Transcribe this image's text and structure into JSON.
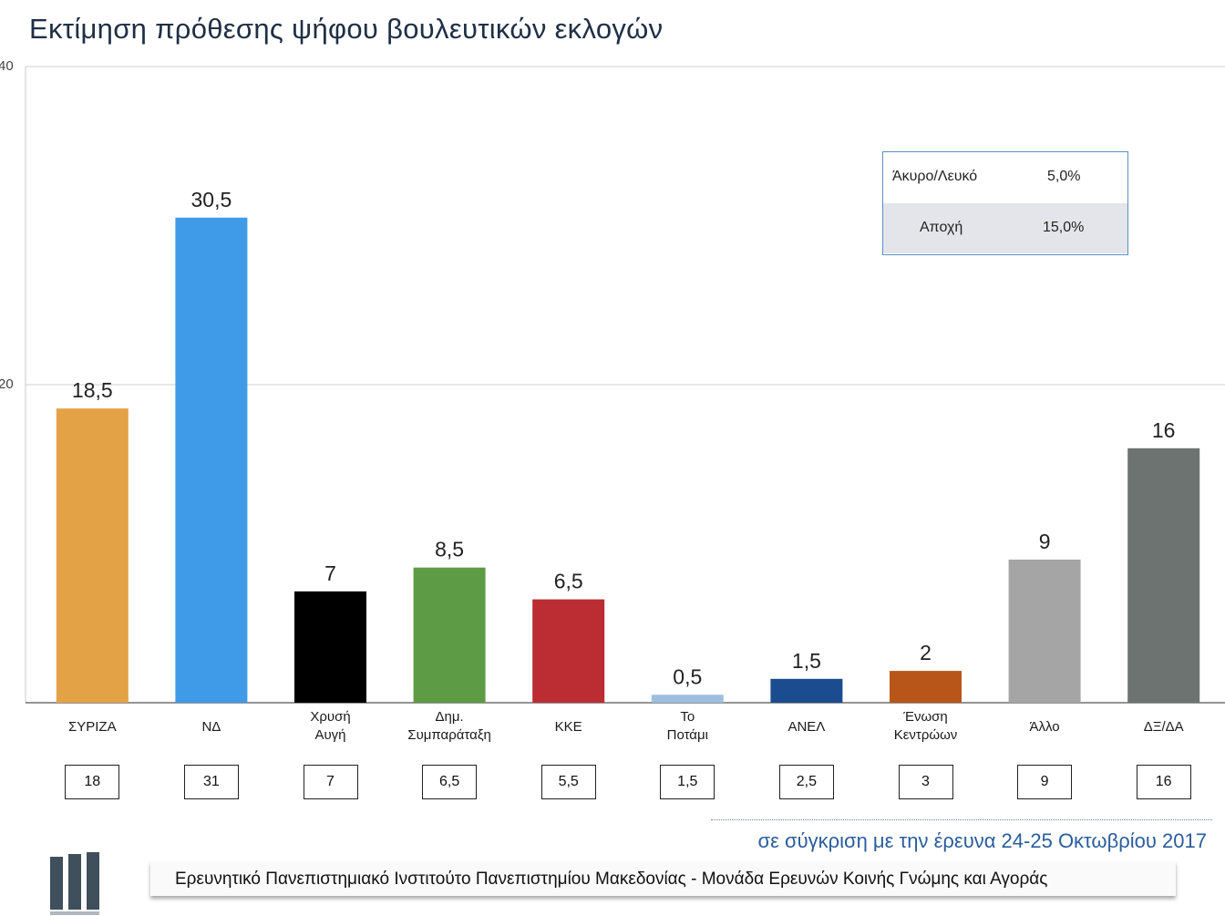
{
  "title": "Εκτίμηση πρόθεσης ψήφου βουλευτικών εκλογών",
  "chart_data": {
    "type": "bar",
    "categories": [
      [
        "ΣΥΡΙΖΑ"
      ],
      [
        "ΝΔ"
      ],
      [
        "Χρυσή",
        "Αυγή"
      ],
      [
        "Δημ.",
        "Συμπαράταξη"
      ],
      [
        "ΚΚΕ"
      ],
      [
        "Το",
        "Ποτάμι"
      ],
      [
        "ΑΝΕΛ"
      ],
      [
        "Ένωση",
        "Κεντρώων"
      ],
      [
        "Άλλο"
      ],
      [
        "ΔΞ/ΔΑ"
      ]
    ],
    "values": [
      18.5,
      30.5,
      7,
      8.5,
      6.5,
      0.5,
      1.5,
      2,
      9,
      16
    ],
    "value_labels": [
      "18,5",
      "30,5",
      "7",
      "8,5",
      "6,5",
      "0,5",
      "1,5",
      "2",
      "9",
      "16"
    ],
    "colors": [
      "#e4a246",
      "#3f9be8",
      "#000000",
      "#5e9b45",
      "#bb2c33",
      "#9cbfde",
      "#1b4c8f",
      "#b8561a",
      "#a5a5a5",
      "#6d7370"
    ],
    "comparison_values": [
      "18",
      "31",
      "7",
      "6,5",
      "5,5",
      "1,5",
      "2,5",
      "3",
      "9",
      "16"
    ],
    "ylim": [
      0,
      40
    ],
    "yticks": [
      "40",
      "20"
    ],
    "grid": true
  },
  "legend_table": {
    "rows": [
      {
        "label": "Άκυρο/Λευκό",
        "value": "5,0%"
      },
      {
        "label": "Αποχή",
        "value": "15,0%"
      }
    ]
  },
  "comparison_note": "σε σύγκριση με την έρευνα 24-25 Οκτωβρίου 2017",
  "footer": "Ερευνητικό Πανεπιστημιακό Ινστιτούτο Πανεπιστημίου Μακεδονίας - Μονάδα Ερευνών Κοινής Γνώμης και Αγοράς",
  "logo": {
    "icon": "institute-logo-icon",
    "color": "#3f4f5c"
  }
}
